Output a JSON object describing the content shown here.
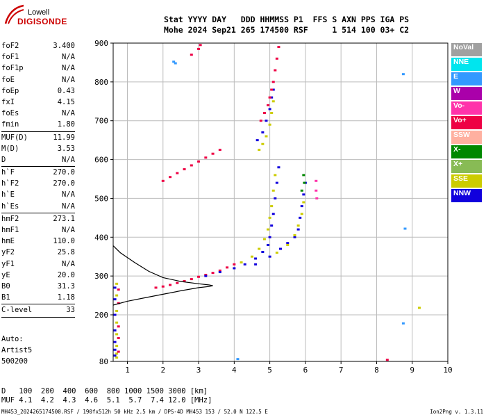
{
  "logo": {
    "line1": "Lowell",
    "line2": "DIGISONDE"
  },
  "header": {
    "labels": "Stat YYYY DAY   DDD HHMMSS P1  FFS S AXN PPS IGA PS",
    "values": "Mohe 2024 Sep21 265 174500 RSF     1 514 100 03+ C2"
  },
  "params": [
    {
      "name": "foF2",
      "value": "3.400"
    },
    {
      "name": "foF1",
      "value": "N/A"
    },
    {
      "name": "foF1p",
      "value": "N/A"
    },
    {
      "name": "foE",
      "value": "N/A"
    },
    {
      "name": "foEp",
      "value": "0.43"
    },
    {
      "name": "fxI",
      "value": "4.15"
    },
    {
      "name": "foEs",
      "value": "N/A"
    },
    {
      "name": "fmin",
      "value": "1.80",
      "sep": true
    },
    {
      "name": "MUF(D)",
      "value": "11.99"
    },
    {
      "name": "M(D)",
      "value": "3.53"
    },
    {
      "name": "D",
      "value": "N/A",
      "sep": true
    },
    {
      "name": "h`F",
      "value": "270.0"
    },
    {
      "name": "h`F2",
      "value": "270.0"
    },
    {
      "name": "h`E",
      "value": "N/A"
    },
    {
      "name": "h`Es",
      "value": "N/A",
      "sep": true
    },
    {
      "name": "hmF2",
      "value": "273.1"
    },
    {
      "name": "hmF1",
      "value": "N/A"
    },
    {
      "name": "hmE",
      "value": "110.0"
    },
    {
      "name": "yF2",
      "value": "25.8"
    },
    {
      "name": "yF1",
      "value": "N/A"
    },
    {
      "name": "yE",
      "value": "20.0"
    },
    {
      "name": "B0",
      "value": "31.3"
    },
    {
      "name": "B1",
      "value": "1.18",
      "sep": true
    },
    {
      "name": "C-level",
      "value": "33",
      "sep": true
    }
  ],
  "auto": {
    "line1": "Auto:",
    "line2": "Artist5",
    "line3": "500200"
  },
  "muf_table": {
    "d_label": "D",
    "d_values": "100  200  400  600  800 1000 1500 3000 [km]",
    "muf_label": "MUF",
    "muf_values": "4.1  4.2  4.3  4.6  5.1  5.7  7.4 12.0 [MHz]"
  },
  "footer": "MH453_2024265174500.RSF / 190fx512h 50 kHz 2.5 km / DPS-4D MH453 153 / 52.0 N 122.5 E",
  "version": "Ion2Png v. 1.3.11",
  "legend": [
    {
      "label": "NoVal",
      "color": "#a0a0a0"
    },
    {
      "label": "NNE",
      "color": "#00e5ee"
    },
    {
      "label": "E",
      "color": "#3399ff"
    },
    {
      "label": "W",
      "color": "#aa00aa"
    },
    {
      "label": "Vo-",
      "color": "#ff33aa"
    },
    {
      "label": "Vo+",
      "color": "#ee0044"
    },
    {
      "label": "SSW",
      "color": "#ffb0a0"
    },
    {
      "label": "X-",
      "color": "#008800"
    },
    {
      "label": "X+",
      "color": "#88bb55"
    },
    {
      "label": "SSE",
      "color": "#cccc00"
    },
    {
      "label": "NNW",
      "color": "#1100dd"
    }
  ],
  "chart_data": {
    "type": "scatter",
    "title": "",
    "xlabel": "",
    "ylabel": "",
    "xlim": [
      0.6,
      10
    ],
    "ylim": [
      80,
      900
    ],
    "x_ticks": [
      1,
      2,
      3,
      4,
      5,
      6,
      7,
      8,
      9,
      10
    ],
    "y_ticks": [
      80,
      200,
      300,
      400,
      500,
      600,
      700,
      800,
      900
    ],
    "grid": true,
    "legend_position": "right",
    "series": [
      {
        "color": "#ee0044",
        "points": [
          [
            1.8,
            270
          ],
          [
            2.0,
            273
          ],
          [
            2.2,
            277
          ],
          [
            2.4,
            282
          ],
          [
            2.6,
            287
          ],
          [
            2.8,
            292
          ],
          [
            3.0,
            298
          ],
          [
            3.2,
            303
          ],
          [
            3.4,
            308
          ],
          [
            3.6,
            314
          ],
          [
            3.8,
            322
          ],
          [
            4.0,
            330
          ]
        ]
      },
      {
        "color": "#1100dd",
        "points": [
          [
            3.2,
            300
          ],
          [
            3.6,
            310
          ],
          [
            4.0,
            320
          ],
          [
            4.3,
            330
          ],
          [
            4.6,
            345
          ],
          [
            4.8,
            362
          ],
          [
            4.95,
            380
          ],
          [
            5.0,
            400
          ],
          [
            5.05,
            430
          ],
          [
            5.1,
            460
          ],
          [
            5.15,
            500
          ],
          [
            5.2,
            540
          ],
          [
            5.25,
            580
          ]
        ]
      },
      {
        "color": "#cccc00",
        "points": [
          [
            4.2,
            335
          ],
          [
            4.5,
            350
          ],
          [
            4.7,
            370
          ],
          [
            4.85,
            395
          ],
          [
            4.95,
            420
          ],
          [
            5.0,
            450
          ],
          [
            5.05,
            480
          ],
          [
            5.1,
            520
          ],
          [
            5.15,
            560
          ]
        ]
      },
      {
        "color": "#1100dd",
        "points": [
          [
            4.6,
            330
          ],
          [
            5.0,
            350
          ],
          [
            5.3,
            370
          ],
          [
            5.5,
            385
          ],
          [
            5.7,
            400
          ],
          [
            5.8,
            420
          ],
          [
            5.85,
            450
          ],
          [
            5.9,
            480
          ],
          [
            5.95,
            510
          ],
          [
            6.0,
            540
          ]
        ]
      },
      {
        "color": "#cccc00",
        "points": [
          [
            5.2,
            360
          ],
          [
            5.5,
            380
          ],
          [
            5.7,
            405
          ],
          [
            5.8,
            430
          ],
          [
            5.9,
            460
          ],
          [
            5.95,
            490
          ]
        ]
      },
      {
        "color": "#ee0044",
        "points": [
          [
            2.0,
            545
          ],
          [
            2.2,
            555
          ],
          [
            2.4,
            565
          ],
          [
            2.6,
            575
          ],
          [
            2.8,
            585
          ],
          [
            3.0,
            595
          ],
          [
            3.2,
            605
          ],
          [
            3.4,
            615
          ],
          [
            3.6,
            625
          ]
        ]
      },
      {
        "color": "#cccc00",
        "points": [
          [
            4.7,
            625
          ],
          [
            4.8,
            640
          ],
          [
            4.9,
            660
          ],
          [
            5.0,
            690
          ],
          [
            5.05,
            720
          ],
          [
            5.1,
            750
          ]
        ]
      },
      {
        "color": "#1100dd",
        "points": [
          [
            4.65,
            650
          ],
          [
            4.8,
            670
          ],
          [
            4.9,
            700
          ],
          [
            5.0,
            730
          ],
          [
            5.05,
            760
          ],
          [
            5.1,
            780
          ]
        ]
      },
      {
        "color": "#ee0044",
        "points": [
          [
            4.75,
            700
          ],
          [
            4.85,
            720
          ],
          [
            4.95,
            740
          ],
          [
            5.0,
            760
          ],
          [
            5.05,
            780
          ],
          [
            5.1,
            800
          ],
          [
            5.15,
            830
          ],
          [
            5.2,
            860
          ],
          [
            5.25,
            890
          ]
        ]
      },
      {
        "color": "#ee0044",
        "points": [
          [
            2.8,
            870
          ],
          [
            3.0,
            885
          ],
          [
            3.05,
            895
          ]
        ]
      },
      {
        "color": "#3399ff",
        "points": [
          [
            2.3,
            852
          ],
          [
            2.35,
            848
          ]
        ]
      },
      {
        "color": "#3399ff",
        "points": [
          [
            8.75,
            820
          ],
          [
            8.8,
            422
          ],
          [
            8.75,
            178
          ],
          [
            4.1,
            86
          ]
        ]
      },
      {
        "color": "#cccc00",
        "points": [
          [
            9.2,
            218
          ]
        ]
      },
      {
        "color": "#ee0044",
        "points": [
          [
            8.3,
            84
          ]
        ]
      },
      {
        "color": "#cccc00",
        "points": [
          [
            0.7,
            280
          ],
          [
            0.7,
            250
          ],
          [
            0.7,
            210
          ],
          [
            0.7,
            180
          ],
          [
            0.7,
            150
          ],
          [
            0.7,
            120
          ],
          [
            0.7,
            100
          ],
          [
            0.7,
            90
          ]
        ]
      },
      {
        "color": "#1100dd",
        "points": [
          [
            0.65,
            270
          ],
          [
            0.65,
            240
          ],
          [
            0.65,
            200
          ],
          [
            0.65,
            160
          ],
          [
            0.65,
            130
          ],
          [
            0.65,
            110
          ],
          [
            0.65,
            95
          ]
        ]
      },
      {
        "color": "#ee0044",
        "points": [
          [
            0.75,
            265
          ],
          [
            0.75,
            230
          ],
          [
            0.75,
            170
          ],
          [
            0.75,
            140
          ],
          [
            0.75,
            105
          ]
        ]
      },
      {
        "color": "#008800",
        "points": [
          [
            5.95,
            560
          ],
          [
            5.97,
            540
          ],
          [
            5.9,
            520
          ]
        ]
      },
      {
        "color": "#ff33aa",
        "points": [
          [
            6.3,
            545
          ],
          [
            6.3,
            520
          ],
          [
            6.32,
            500
          ]
        ]
      }
    ],
    "profile_line": {
      "color": "#000000",
      "points": [
        [
          0.6,
          378
        ],
        [
          0.8,
          360
        ],
        [
          1.2,
          335
        ],
        [
          1.6,
          312
        ],
        [
          2.0,
          296
        ],
        [
          2.5,
          286
        ],
        [
          3.0,
          280
        ],
        [
          3.3,
          277
        ],
        [
          3.4,
          275
        ],
        [
          3.3,
          273
        ],
        [
          3.0,
          270
        ],
        [
          2.5,
          262
        ],
        [
          2.0,
          253
        ],
        [
          1.5,
          244
        ],
        [
          1.0,
          235
        ],
        [
          0.6,
          225
        ]
      ]
    }
  }
}
